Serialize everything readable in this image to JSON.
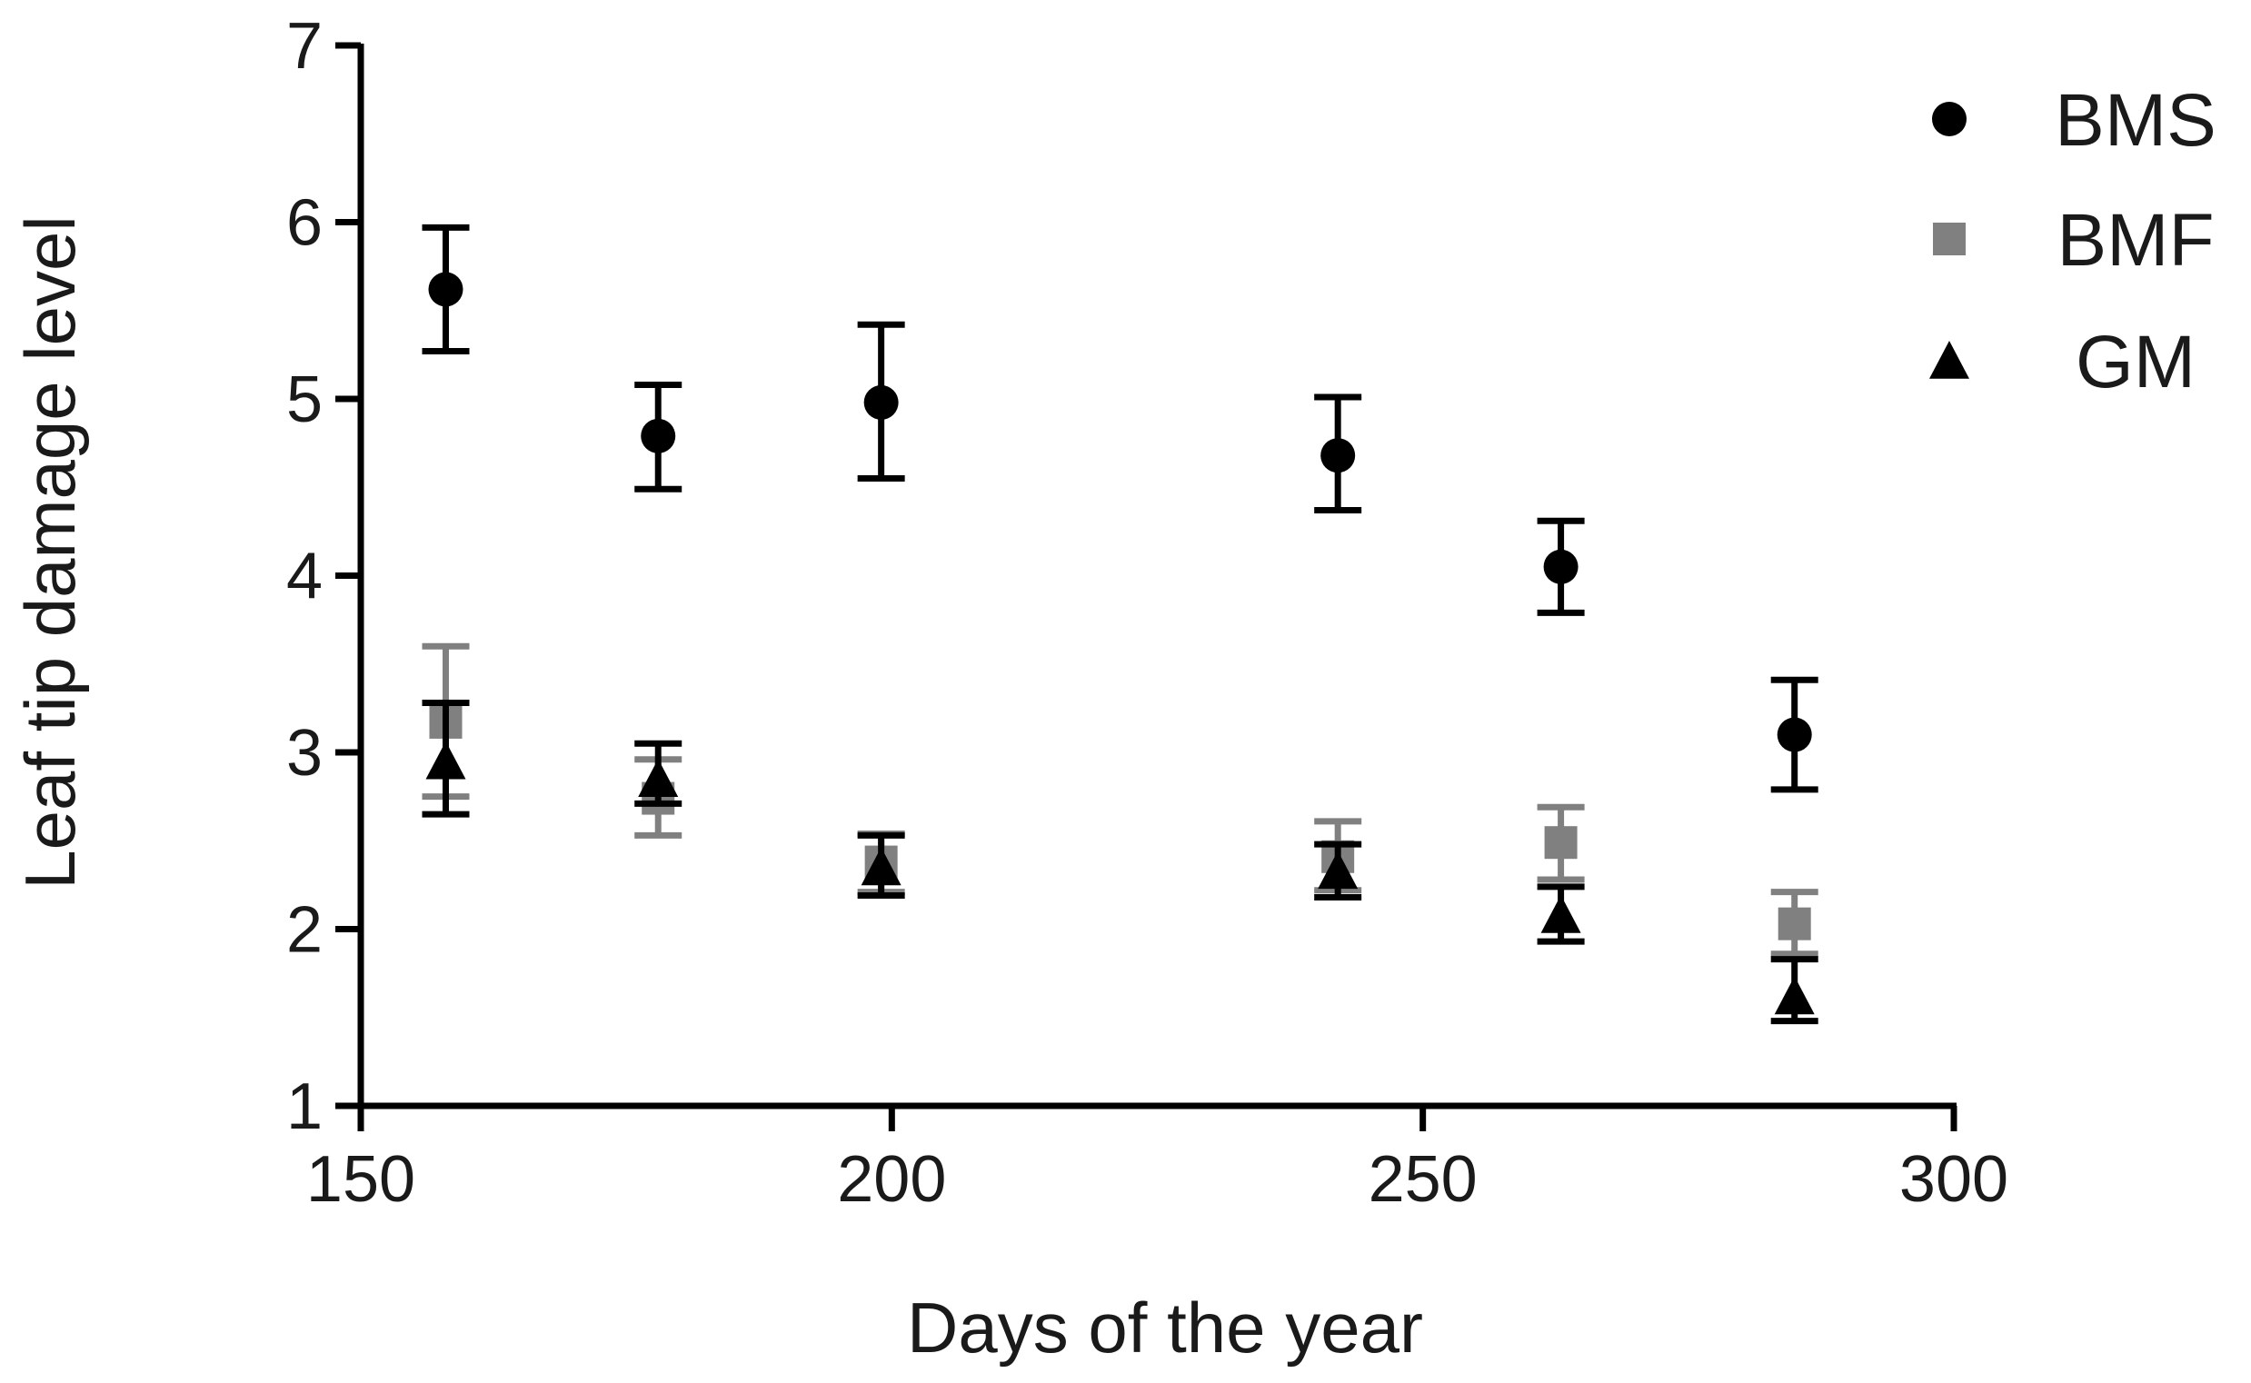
{
  "chart_data": {
    "type": "scatter",
    "title": "",
    "xlabel": "Days of the year",
    "ylabel": "Leaf tip damage level",
    "xlim": [
      150,
      300
    ],
    "ylim": [
      1,
      7
    ],
    "xticks": [
      "150",
      "200",
      "250",
      "300"
    ],
    "yticks": [
      "1",
      "2",
      "3",
      "4",
      "5",
      "6",
      "7"
    ],
    "grid": false,
    "legend_position": "top-right",
    "error_bars": true,
    "series": [
      {
        "name": "BMS",
        "marker": "circle",
        "color": "#000000",
        "points": [
          {
            "x": 158,
            "y": 5.62,
            "err_low": 5.27,
            "err_high": 5.97
          },
          {
            "x": 178,
            "y": 4.79,
            "err_low": 4.49,
            "err_high": 5.08
          },
          {
            "x": 199,
            "y": 4.98,
            "err_low": 4.55,
            "err_high": 5.42
          },
          {
            "x": 242,
            "y": 4.68,
            "err_low": 4.37,
            "err_high": 5.01
          },
          {
            "x": 263,
            "y": 4.05,
            "err_low": 3.79,
            "err_high": 4.31
          },
          {
            "x": 285,
            "y": 3.1,
            "err_low": 2.79,
            "err_high": 3.41
          }
        ]
      },
      {
        "name": "BMF",
        "marker": "square",
        "color": "#808080",
        "points": [
          {
            "x": 158,
            "y": 3.17,
            "err_low": 2.75,
            "err_high": 3.6
          },
          {
            "x": 178,
            "y": 2.74,
            "err_low": 2.53,
            "err_high": 2.96
          },
          {
            "x": 199,
            "y": 2.38,
            "err_low": 2.21,
            "err_high": 2.54
          },
          {
            "x": 242,
            "y": 2.41,
            "err_low": 2.22,
            "err_high": 2.61
          },
          {
            "x": 263,
            "y": 2.49,
            "err_low": 2.28,
            "err_high": 2.69
          },
          {
            "x": 285,
            "y": 2.03,
            "err_low": 1.86,
            "err_high": 2.21
          }
        ]
      },
      {
        "name": "GM",
        "marker": "triangle",
        "color": "#000000",
        "points": [
          {
            "x": 158,
            "y": 2.95,
            "err_low": 2.65,
            "err_high": 3.28
          },
          {
            "x": 178,
            "y": 2.85,
            "err_low": 2.71,
            "err_high": 3.05
          },
          {
            "x": 199,
            "y": 2.35,
            "err_low": 2.19,
            "err_high": 2.53
          },
          {
            "x": 242,
            "y": 2.33,
            "err_low": 2.18,
            "err_high": 2.48
          },
          {
            "x": 263,
            "y": 2.08,
            "err_low": 1.93,
            "err_high": 2.24
          },
          {
            "x": 285,
            "y": 1.62,
            "err_low": 1.48,
            "err_high": 1.83
          }
        ]
      }
    ]
  }
}
